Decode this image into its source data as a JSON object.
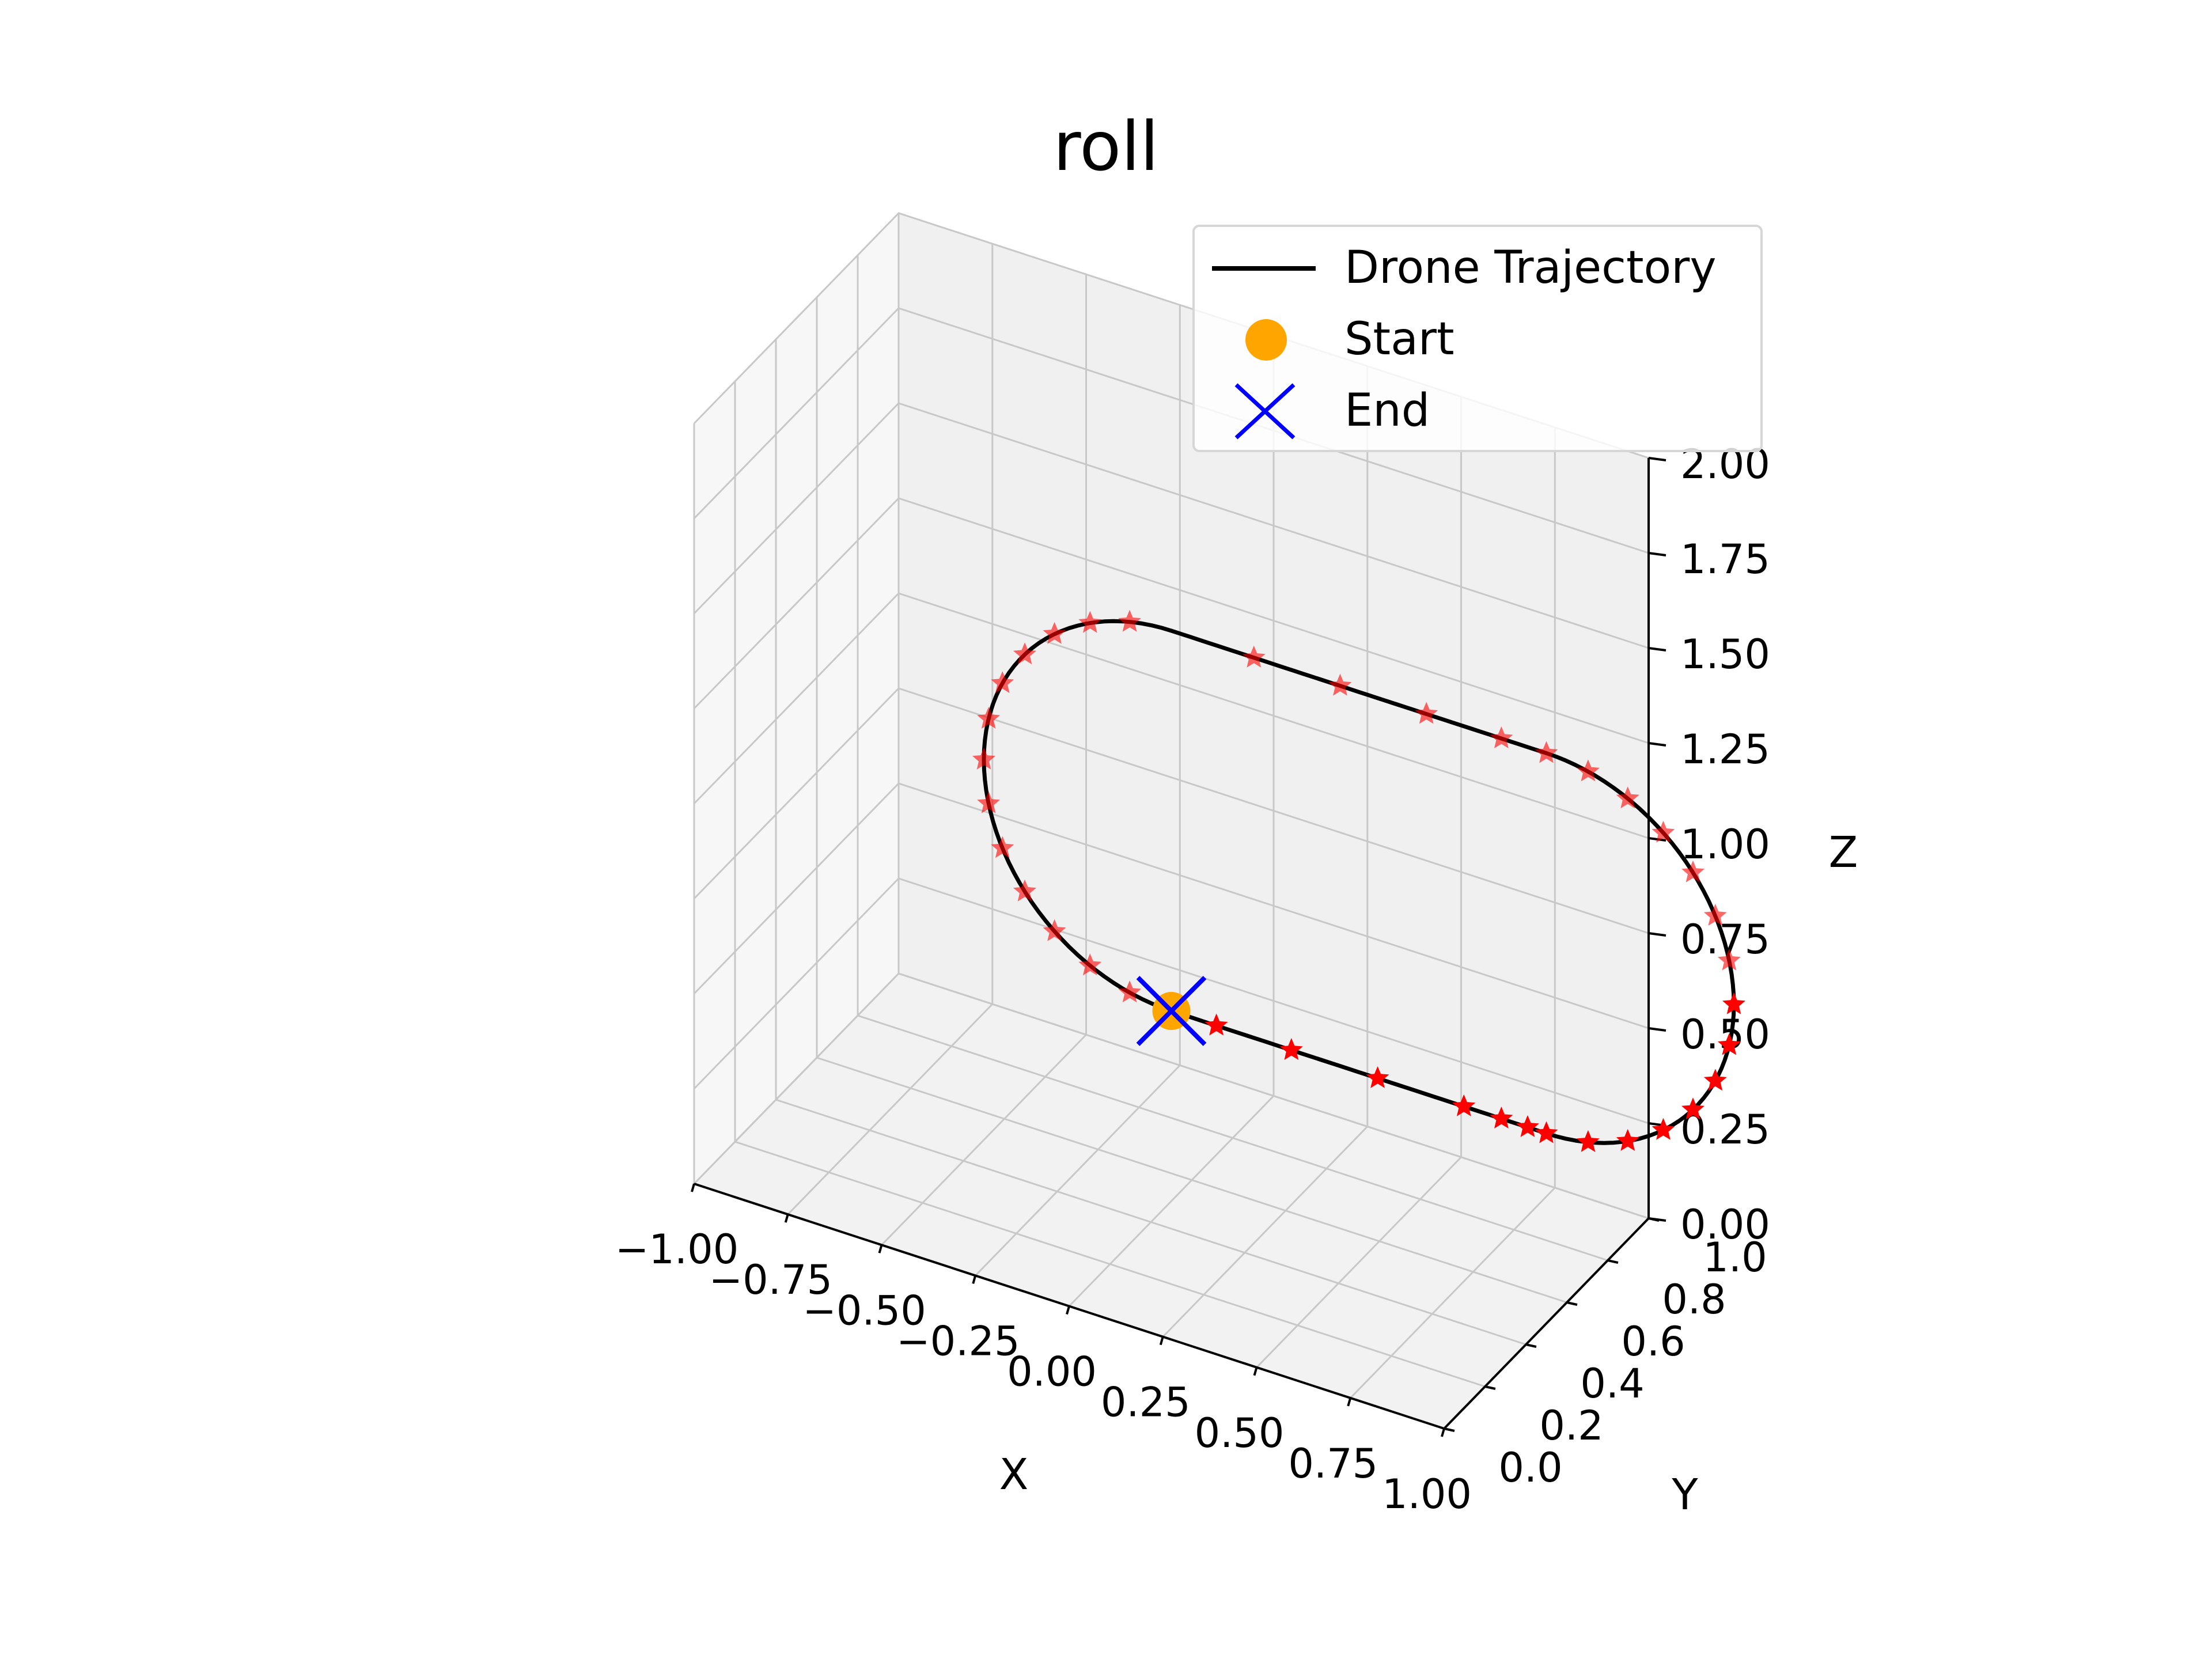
{
  "chart_data": {
    "type": "line3d",
    "title": "roll",
    "xlabel": "X",
    "ylabel": "Y",
    "zlabel": "Z",
    "xlim": [
      -1.0,
      1.0
    ],
    "ylim": [
      0.0,
      1.0
    ],
    "zlim": [
      0.0,
      2.0
    ],
    "x_ticks": [
      "−1.00",
      "−0.75",
      "−0.50",
      "−0.25",
      "0.00",
      "0.25",
      "0.50",
      "0.75",
      "1.00"
    ],
    "y_ticks": [
      "0.0",
      "0.2",
      "0.4",
      "0.6",
      "0.8",
      "1.0"
    ],
    "z_ticks": [
      "0.00",
      "0.25",
      "0.50",
      "0.75",
      "1.00",
      "1.25",
      "1.50",
      "1.75",
      "2.00"
    ],
    "grid": true,
    "legend": {
      "position": "upper right",
      "entries": [
        {
          "label": "Drone Trajectory",
          "marker": "line",
          "color": "#000000"
        },
        {
          "label": "Start",
          "marker": "circle",
          "color": "#ffa500"
        },
        {
          "label": "End",
          "marker": "x",
          "color": "#0000ff"
        }
      ]
    },
    "series": [
      {
        "name": "Drone Trajectory",
        "type": "line",
        "color": "#000000",
        "curve": "stadium loop in the x–z plane at y = 0.5, straight segments from x = 0 to x = 1 at z = 0.5 and z = 1.5, semicircular ends of radius 0.5 centred at (0, 1.0) and (1, 1.0)"
      },
      {
        "name": "",
        "type": "scatter",
        "marker": "star",
        "color": "#ff0000",
        "points": "waypoints sampled along the trajectory, denser on the curved ends"
      },
      {
        "name": "Start",
        "type": "scatter",
        "marker": "circle",
        "color": "#ffa500",
        "points": [
          [
            0.0,
            0.5,
            0.5
          ]
        ]
      },
      {
        "name": "End",
        "type": "scatter",
        "marker": "x",
        "color": "#0000ff",
        "points": [
          [
            0.0,
            0.5,
            0.5
          ]
        ]
      }
    ]
  }
}
